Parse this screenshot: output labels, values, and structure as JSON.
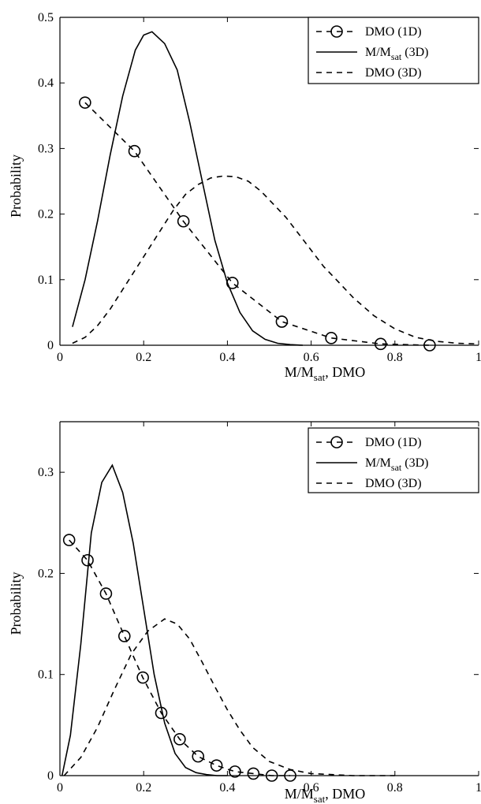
{
  "chart_data": [
    {
      "type": "line",
      "xlabel": "M/M",
      "xlabel_sub": "sat",
      "xlabel_suffix": ", DMO",
      "ylabel": "Probability",
      "xlim": [
        0,
        1
      ],
      "ylim": [
        0,
        0.5
      ],
      "xticks": [
        0,
        0.2,
        0.4,
        0.6,
        0.8,
        1
      ],
      "xtick_labels": [
        "0",
        "0.2",
        "0.4",
        "0.6",
        "0.8",
        "1"
      ],
      "yticks": [
        0,
        0.1,
        0.2,
        0.3,
        0.4,
        0.5
      ],
      "ytick_labels": [
        "0",
        "0.1",
        "0.2",
        "0.3",
        "0.4",
        "0.5"
      ],
      "legend_position": "top-right",
      "legend": [
        {
          "text": "DMO (1D)",
          "sub": "",
          "suffix": "",
          "style": "dashed-circle"
        },
        {
          "text": "M/M",
          "sub": "sat",
          "suffix": " (3D)",
          "style": "solid"
        },
        {
          "text": "DMO (3D)",
          "sub": "",
          "suffix": "",
          "style": "dashed"
        }
      ],
      "series": [
        {
          "style": "dashed-circle",
          "x": [
            0.06,
            0.178,
            0.295,
            0.412,
            0.53,
            0.648,
            0.766,
            0.883
          ],
          "y": [
            0.37,
            0.296,
            0.189,
            0.095,
            0.036,
            0.011,
            0.002,
            0.0
          ],
          "markers": true
        },
        {
          "style": "solid",
          "x": [
            0.03,
            0.06,
            0.09,
            0.12,
            0.15,
            0.18,
            0.2,
            0.22,
            0.25,
            0.28,
            0.31,
            0.34,
            0.37,
            0.4,
            0.43,
            0.46,
            0.49,
            0.52,
            0.55,
            0.58
          ],
          "y": [
            0.028,
            0.1,
            0.19,
            0.29,
            0.38,
            0.45,
            0.473,
            0.478,
            0.46,
            0.42,
            0.34,
            0.25,
            0.16,
            0.095,
            0.05,
            0.022,
            0.009,
            0.003,
            0.001,
            0.0
          ],
          "markers": false
        },
        {
          "style": "dashed",
          "x": [
            0.03,
            0.06,
            0.09,
            0.12,
            0.15,
            0.18,
            0.21,
            0.24,
            0.27,
            0.3,
            0.33,
            0.36,
            0.39,
            0.42,
            0.45,
            0.48,
            0.51,
            0.54,
            0.57,
            0.6,
            0.63,
            0.66,
            0.7,
            0.75,
            0.8,
            0.85,
            0.9,
            0.95,
            1.0
          ],
          "y": [
            0.003,
            0.012,
            0.03,
            0.055,
            0.085,
            0.115,
            0.145,
            0.175,
            0.205,
            0.23,
            0.245,
            0.255,
            0.258,
            0.257,
            0.25,
            0.235,
            0.215,
            0.195,
            0.17,
            0.145,
            0.12,
            0.1,
            0.073,
            0.045,
            0.025,
            0.012,
            0.006,
            0.003,
            0.002
          ],
          "markers": false
        }
      ]
    },
    {
      "type": "line",
      "xlabel": "M/M",
      "xlabel_sub": "sat",
      "xlabel_suffix": ", DMO",
      "ylabel": "Probability",
      "xlim": [
        0,
        1
      ],
      "ylim": [
        0,
        0.35
      ],
      "xticks": [
        0,
        0.2,
        0.4,
        0.6,
        0.8,
        1
      ],
      "xtick_labels": [
        "0",
        "0.2",
        "0.4",
        "0.6",
        "0.8",
        "1"
      ],
      "yticks": [
        0,
        0.1,
        0.2,
        0.3
      ],
      "ytick_labels": [
        "0",
        "0.1",
        "0.2",
        "0.3"
      ],
      "legend_position": "top-right",
      "legend": [
        {
          "text": "DMO (1D)",
          "sub": "",
          "suffix": "",
          "style": "dashed-circle"
        },
        {
          "text": "M/M",
          "sub": "sat",
          "suffix": " (3D)",
          "style": "solid"
        },
        {
          "text": "DMO (3D)",
          "sub": "",
          "suffix": "",
          "style": "dashed"
        }
      ],
      "series": [
        {
          "style": "dashed-circle",
          "x": [
            0.022,
            0.066,
            0.11,
            0.154,
            0.198,
            0.242,
            0.286,
            0.33,
            0.374,
            0.418,
            0.462,
            0.506,
            0.55
          ],
          "y": [
            0.233,
            0.213,
            0.18,
            0.138,
            0.097,
            0.062,
            0.036,
            0.019,
            0.01,
            0.004,
            0.002,
            0.0,
            0.0
          ],
          "markers": true
        },
        {
          "style": "solid",
          "x": [
            0.005,
            0.025,
            0.05,
            0.075,
            0.1,
            0.125,
            0.15,
            0.175,
            0.2,
            0.225,
            0.25,
            0.275,
            0.3,
            0.325,
            0.35,
            0.375,
            0.4
          ],
          "y": [
            0.0,
            0.04,
            0.13,
            0.24,
            0.29,
            0.307,
            0.28,
            0.23,
            0.165,
            0.1,
            0.052,
            0.022,
            0.008,
            0.003,
            0.001,
            0.0,
            0.0
          ],
          "markers": false
        },
        {
          "style": "dashed",
          "x": [
            0.01,
            0.05,
            0.09,
            0.13,
            0.17,
            0.21,
            0.25,
            0.28,
            0.31,
            0.34,
            0.37,
            0.4,
            0.43,
            0.46,
            0.5,
            0.55,
            0.6,
            0.65,
            0.7,
            0.75,
            0.8
          ],
          "y": [
            0.0,
            0.018,
            0.048,
            0.085,
            0.12,
            0.143,
            0.155,
            0.15,
            0.135,
            0.112,
            0.088,
            0.065,
            0.045,
            0.028,
            0.014,
            0.006,
            0.002,
            0.001,
            0.0,
            0.0,
            0.0
          ],
          "markers": false
        }
      ]
    }
  ]
}
